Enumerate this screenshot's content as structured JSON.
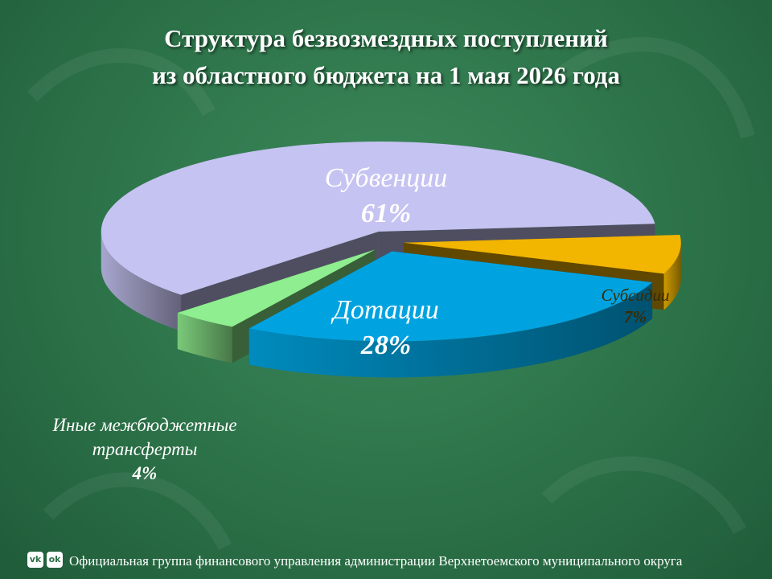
{
  "chart_data": {
    "type": "pie",
    "title": [
      "Структура безвозмездных поступлений",
      "из областного бюджета на 1 мая 2026 года"
    ],
    "categories": [
      "Субсидии",
      "Дотации",
      "Иные межбюджетные трансферты",
      "Субвенции"
    ],
    "values": [
      7,
      28,
      4,
      61
    ],
    "value_labels": [
      "7%",
      "28%",
      "4%",
      "61%"
    ],
    "colors": [
      "#f2b500",
      "#00a3e0",
      "#8fee8f",
      "#c5c3f2"
    ]
  },
  "footer": "Официальная группа финансового управления администрации Верхнетоемского муниципального округа"
}
